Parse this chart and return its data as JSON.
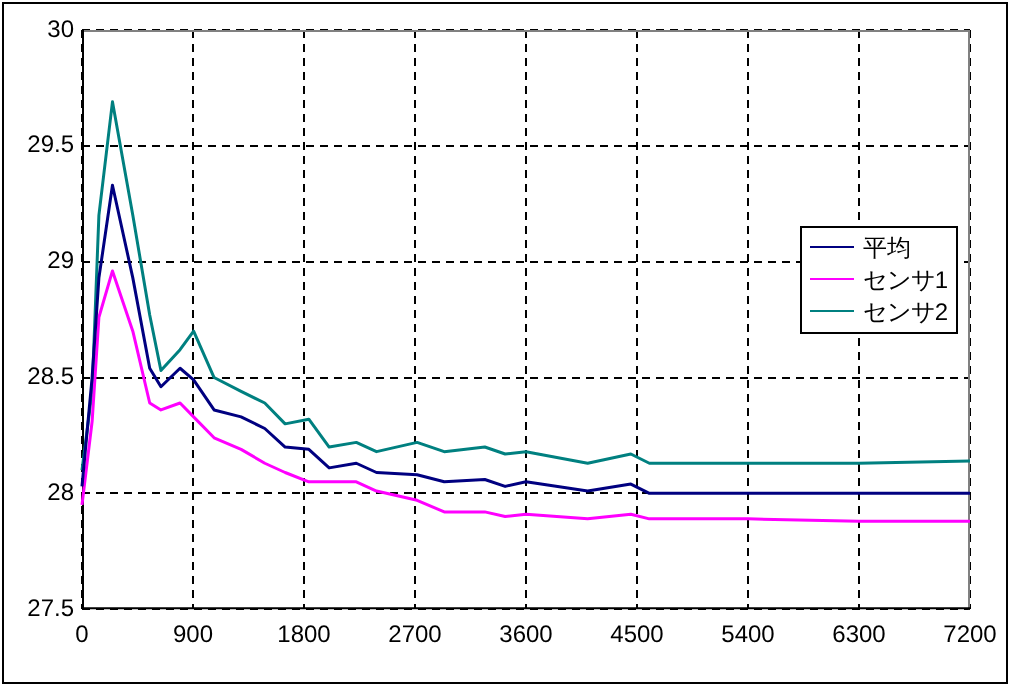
{
  "chart_data": {
    "type": "line",
    "xlim": [
      0,
      7200
    ],
    "xticks": [
      0,
      900,
      1800,
      2700,
      3600,
      4500,
      5400,
      6300,
      7200
    ],
    "ylim": [
      27.5,
      30
    ],
    "yticks": [
      27.5,
      28,
      28.5,
      29,
      29.5,
      30
    ],
    "grid": true,
    "legend": "right",
    "marker": "none",
    "line_style": "solid",
    "x": [
      0,
      82,
      137,
      247,
      412,
      549,
      640,
      795,
      905,
      1071,
      1290,
      1482,
      1647,
      1839,
      2004,
      2224,
      2388,
      2717,
      2937,
      3266,
      3431,
      3600,
      4100,
      4450,
      4600,
      5400,
      6300,
      7200
    ],
    "series": [
      {
        "name": "平均",
        "color": "#000080",
        "values": [
          28.03,
          28.5,
          28.93,
          29.33,
          28.93,
          28.54,
          28.46,
          28.54,
          28.49,
          28.36,
          28.33,
          28.28,
          28.2,
          28.19,
          28.11,
          28.13,
          28.09,
          28.08,
          28.05,
          28.06,
          28.03,
          28.05,
          28.01,
          28.04,
          28.0,
          28.0,
          28.0,
          28.0
        ]
      },
      {
        "name": "センサ1",
        "color": "#ff00ff",
        "values": [
          27.95,
          28.31,
          28.76,
          28.96,
          28.7,
          28.39,
          28.36,
          28.39,
          28.33,
          28.24,
          28.19,
          28.13,
          28.09,
          28.05,
          28.05,
          28.05,
          28.01,
          27.97,
          27.92,
          27.92,
          27.9,
          27.91,
          27.89,
          27.91,
          27.89,
          27.89,
          27.88,
          27.88
        ]
      },
      {
        "name": "センサ2",
        "color": "#008080",
        "values": [
          28.1,
          28.44,
          29.2,
          29.69,
          29.2,
          28.77,
          28.53,
          28.62,
          28.7,
          28.5,
          28.44,
          28.39,
          28.3,
          28.32,
          28.2,
          28.22,
          28.18,
          28.22,
          28.18,
          28.2,
          28.17,
          28.18,
          28.13,
          28.17,
          28.13,
          28.13,
          28.13,
          28.14
        ]
      }
    ]
  }
}
